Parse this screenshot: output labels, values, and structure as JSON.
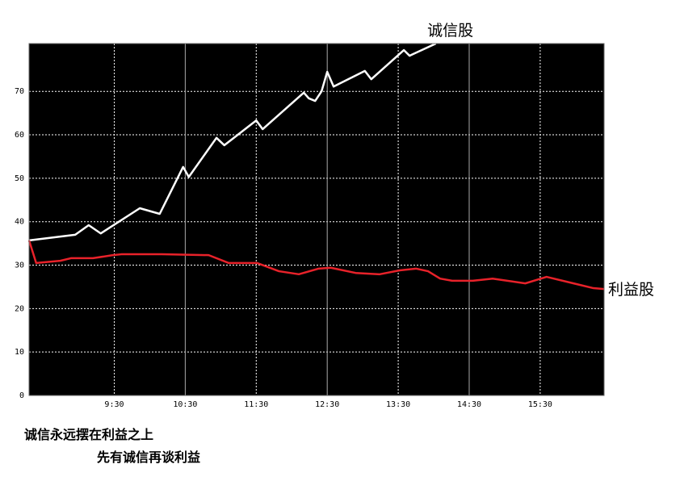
{
  "chart_data": {
    "type": "line",
    "annotations": [
      "诚信永远摆在利益之上",
      "先有诚信再谈利益"
    ],
    "xlim": [
      8.3,
      16.4
    ],
    "xticks": [
      {
        "value": 9.5,
        "label": "9:30"
      },
      {
        "value": 10.5,
        "label": "10:30"
      },
      {
        "value": 11.5,
        "label": "11:30"
      },
      {
        "value": 12.5,
        "label": "12:30"
      },
      {
        "value": 13.5,
        "label": "13:30"
      },
      {
        "value": 14.5,
        "label": "14:30"
      },
      {
        "value": 15.5,
        "label": "15:30"
      }
    ],
    "ylim": [
      0,
      81
    ],
    "yticks": [
      0,
      10,
      20,
      30,
      40,
      50,
      60,
      70
    ],
    "grid": true,
    "series": [
      {
        "name": "诚信股",
        "color": "#ffffff",
        "x": [
          8.3,
          8.95,
          9.14,
          9.31,
          9.86,
          10.14,
          10.47,
          10.55,
          10.94,
          11.05,
          11.5,
          11.59,
          12.17,
          12.24,
          12.33,
          12.42,
          12.5,
          12.59,
          13.03,
          13.12,
          13.58,
          13.66,
          14.03
        ],
        "values": [
          35.7,
          37,
          39.2,
          37.3,
          43.1,
          41.8,
          52.6,
          50.3,
          59.3,
          57.6,
          63.3,
          61.3,
          69.7,
          68.4,
          67.8,
          70,
          74.5,
          71.1,
          74.7,
          72.8,
          79.5,
          78.2,
          81
        ]
      },
      {
        "name": "利益股",
        "color": "#e8222a",
        "x": [
          8.3,
          8.4,
          8.74,
          8.89,
          9.2,
          9.48,
          9.6,
          10.17,
          10.83,
          11.11,
          11.51,
          11.82,
          12.1,
          12.38,
          12.55,
          12.9,
          13.24,
          13.52,
          13.75,
          13.92,
          14.09,
          14.26,
          14.55,
          14.83,
          15.29,
          15.59,
          15.97,
          16.25,
          16.4
        ],
        "values": [
          35.7,
          30.5,
          31,
          31.6,
          31.6,
          32.3,
          32.5,
          32.5,
          32.3,
          30.5,
          30.5,
          28.6,
          27.9,
          29.2,
          29.4,
          28.2,
          27.9,
          28.8,
          29.2,
          28.6,
          26.9,
          26.4,
          26.4,
          26.9,
          25.8,
          27.3,
          25.8,
          24.7,
          24.5
        ]
      }
    ]
  }
}
